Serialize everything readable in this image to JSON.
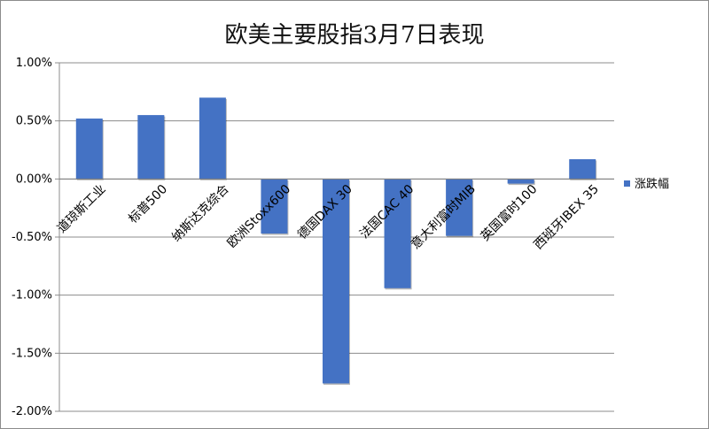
{
  "chart_data": {
    "type": "bar",
    "title": "欧美主要股指3月7日表现",
    "categories": [
      "道琼斯工业",
      "标普500",
      "纳斯达克综合",
      "欧洲Stoxx600",
      "德国DAX 30",
      "法国CAC 40",
      "意大利富时MIB",
      "英国富时100",
      "西班牙IBEX 35"
    ],
    "series": [
      {
        "name": "涨跌幅",
        "values": [
          0.52,
          0.55,
          0.7,
          -0.47,
          -1.76,
          -0.94,
          -0.49,
          -0.04,
          0.17
        ],
        "color": "#4472C4"
      }
    ],
    "ylim": [
      -2.0,
      1.0
    ],
    "yticks": [
      1.0,
      0.5,
      0.0,
      -0.5,
      -1.0,
      -1.5,
      -2.0
    ],
    "ytick_labels": [
      "1.00%",
      "0.50%",
      "0.00%",
      "-0.50%",
      "-1.00%",
      "-1.50%",
      "-2.00%"
    ],
    "grid": true,
    "legend_position": "right"
  }
}
